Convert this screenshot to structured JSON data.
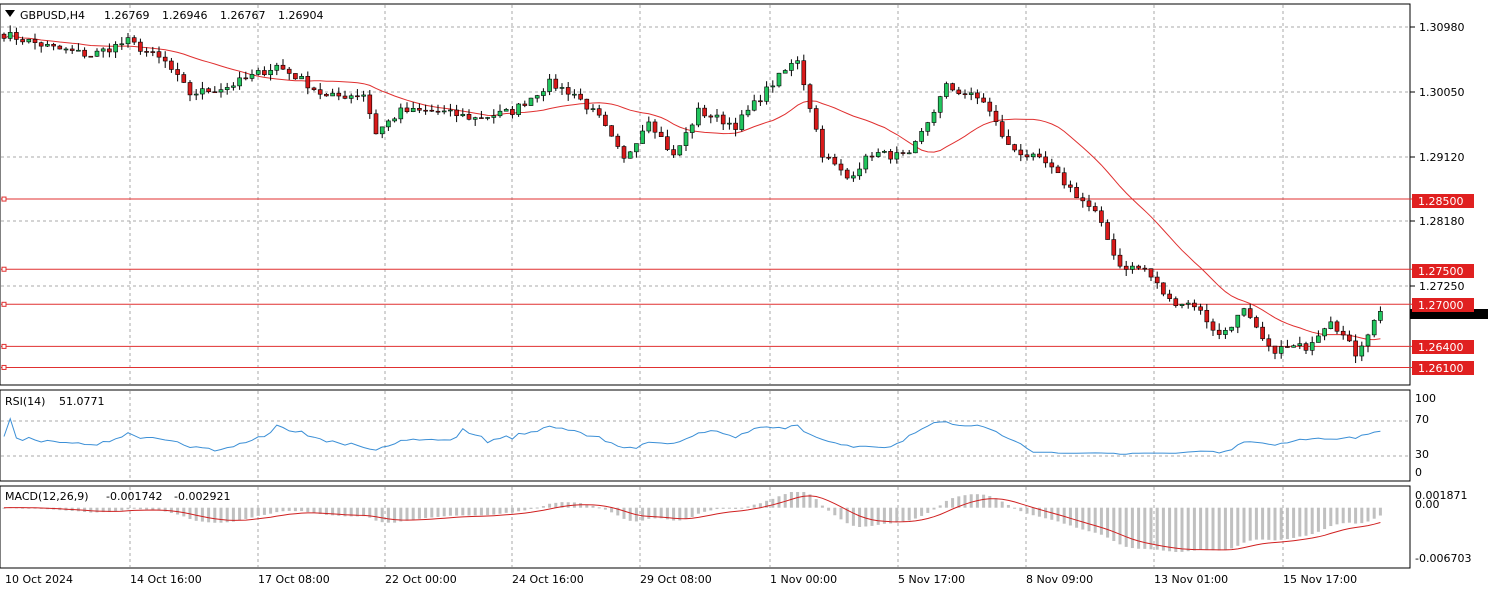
{
  "symbol_header": {
    "menu_icon": "triangle-down-icon",
    "symbol_timeframe": "GBPUSD,H4",
    "open": "1.26769",
    "high": "1.26946",
    "low": "1.26767",
    "close": "1.26904"
  },
  "main_axis_labels": [
    "1.30980",
    "1.30050",
    "1.29120",
    "1.28180",
    "1.27250"
  ],
  "horizontal_levels": [
    {
      "label": "1.28500",
      "value": 1.285
    },
    {
      "label": "1.27500",
      "value": 1.275
    },
    {
      "label": "1.27000",
      "value": 1.27
    },
    {
      "label": "1.26400",
      "value": 1.264
    },
    {
      "label": "1.26100",
      "value": 1.261
    }
  ],
  "rsi": {
    "label": "RSI(14)",
    "value": "51.0771",
    "axis_labels": [
      "100",
      "70",
      "30",
      "0"
    ]
  },
  "macd": {
    "label": "MACD(12,26,9)",
    "main_value": "-0.001742",
    "signal_value": "-0.002921",
    "axis_labels": [
      "0.001871",
      "0.00",
      "-0.006703"
    ]
  },
  "time_labels": [
    "10 Oct 2024",
    "14 Oct 16:00",
    "17 Oct 08:00",
    "22 Oct 00:00",
    "24 Oct 16:00",
    "29 Oct 08:00",
    "1 Nov 00:00",
    "5 Nov 17:00",
    "8 Nov 09:00",
    "13 Nov 01:00",
    "15 Nov 17:00"
  ],
  "colors": {
    "bull": "#22c55e",
    "bear": "#d91a1a",
    "ma": "#e03030",
    "levels": "#e03030",
    "rsi": "#3b8fd6",
    "macd_hist": "#c0c0c0",
    "macd_signal": "#d02020",
    "grid": "#a8a8a8"
  },
  "chart_data": {
    "type": "candlestick",
    "symbol": "GBPUSD",
    "timeframe": "H4",
    "ylim": [
      1.2585,
      1.3128
    ],
    "anchors": [
      [
        0,
        1.3085
      ],
      [
        8,
        1.3065
      ],
      [
        14,
        1.3055
      ],
      [
        20,
        1.3075
      ],
      [
        26,
        1.3045
      ],
      [
        30,
        1.3
      ],
      [
        36,
        1.301
      ],
      [
        44,
        1.304
      ],
      [
        48,
        1.302
      ],
      [
        52,
        1.2995
      ],
      [
        58,
        1.3
      ],
      [
        60,
        1.2945
      ],
      [
        64,
        1.2975
      ],
      [
        70,
        1.2975
      ],
      [
        76,
        1.2965
      ],
      [
        82,
        1.2975
      ],
      [
        88,
        1.3015
      ],
      [
        92,
        1.3
      ],
      [
        96,
        1.2965
      ],
      [
        100,
        1.2905
      ],
      [
        104,
        1.2965
      ],
      [
        108,
        1.291
      ],
      [
        112,
        1.2975
      ],
      [
        118,
        1.2955
      ],
      [
        124,
        1.3015
      ],
      [
        128,
        1.305
      ],
      [
        132,
        1.2915
      ],
      [
        136,
        1.288
      ],
      [
        140,
        1.2915
      ],
      [
        146,
        1.291
      ],
      [
        152,
        1.301
      ],
      [
        158,
        1.299
      ],
      [
        162,
        1.2925
      ],
      [
        168,
        1.29
      ],
      [
        172,
        1.2865
      ],
      [
        176,
        1.283
      ],
      [
        180,
        1.2755
      ],
      [
        184,
        1.275
      ],
      [
        188,
        1.2705
      ],
      [
        192,
        1.27
      ],
      [
        196,
        1.2655
      ],
      [
        200,
        1.269
      ],
      [
        204,
        1.2635
      ],
      [
        210,
        1.264
      ],
      [
        214,
        1.268
      ],
      [
        218,
        1.263
      ],
      [
        220,
        1.266
      ],
      [
        222,
        1.269
      ]
    ],
    "ma_period": 20,
    "rsi_period": 14,
    "rsi_ylim": [
      0,
      100
    ],
    "macd_ylim": [
      -0.006703,
      0.001871
    ]
  }
}
